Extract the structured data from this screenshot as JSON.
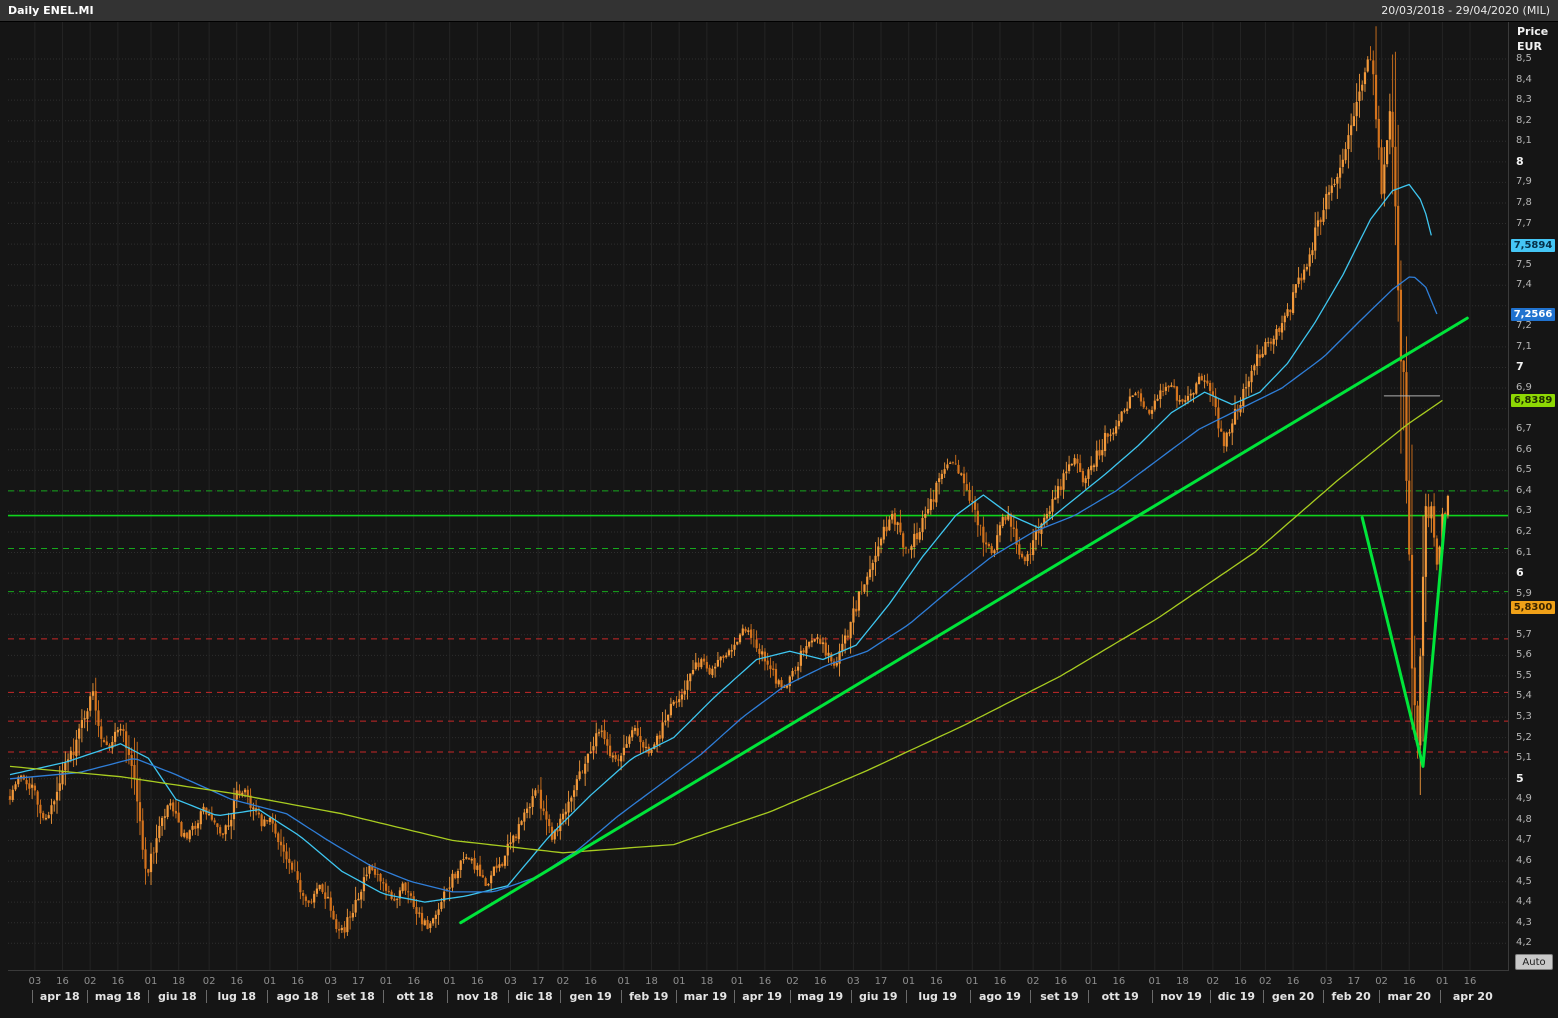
{
  "window": {
    "title": "Daily ENEL.MI",
    "date_range": "20/03/2018 - 29/04/2020 (MIL)"
  },
  "price_axis": {
    "title_line1": "Price",
    "title_line2": "EUR",
    "min": 4.2,
    "max": 8.5,
    "step": 0.1,
    "decimal_separator": ","
  },
  "auto_button": {
    "label": "Auto"
  },
  "markers": [
    {
      "value": 7.5894,
      "label": "7,5894",
      "bg": "#45c6f5",
      "fg": "#053047"
    },
    {
      "value": 7.2566,
      "label": "7,2566",
      "bg": "#2072cf",
      "fg": "#ffffff"
    },
    {
      "value": 6.8389,
      "label": "6,8389",
      "bg": "#8ed804",
      "fg": "#1c2a00"
    },
    {
      "value": 5.83,
      "label": "5,8300",
      "bg": "#f0a118",
      "fg": "#3a2400"
    }
  ],
  "x_axis": {
    "total_days": 541,
    "months": [
      {
        "label": "apr 18",
        "start": 8,
        "t1": "03",
        "t2": "16"
      },
      {
        "label": "mag 18",
        "start": 28,
        "t1": "02",
        "t2": "16"
      },
      {
        "label": "giu 18",
        "start": 50,
        "t1": "01",
        "t2": "18"
      },
      {
        "label": "lug 18",
        "start": 71,
        "t1": "02",
        "t2": "16"
      },
      {
        "label": "ago 18",
        "start": 93,
        "t1": "01",
        "t2": "16"
      },
      {
        "label": "set 18",
        "start": 115,
        "t1": "03",
        "t2": "17"
      },
      {
        "label": "ott 18",
        "start": 135,
        "t1": "01",
        "t2": "16"
      },
      {
        "label": "nov 18",
        "start": 158,
        "t1": "01",
        "t2": "16"
      },
      {
        "label": "dic 18",
        "start": 180,
        "t1": "03",
        "t2": "17"
      },
      {
        "label": "gen 19",
        "start": 199,
        "t1": "02",
        "t2": "16"
      },
      {
        "label": "feb 19",
        "start": 221,
        "t1": "01",
        "t2": "18"
      },
      {
        "label": "mar 19",
        "start": 241,
        "t1": "01",
        "t2": "18"
      },
      {
        "label": "apr 19",
        "start": 262,
        "t1": "01",
        "t2": "16"
      },
      {
        "label": "mag 19",
        "start": 282,
        "t1": "02",
        "t2": "16"
      },
      {
        "label": "giu 19",
        "start": 304,
        "t1": "03",
        "t2": "17"
      },
      {
        "label": "lug 19",
        "start": 324,
        "t1": "01",
        "t2": "16"
      },
      {
        "label": "ago 19",
        "start": 347,
        "t1": "01",
        "t2": "16"
      },
      {
        "label": "set 19",
        "start": 369,
        "t1": "02",
        "t2": "16"
      },
      {
        "label": "ott 19",
        "start": 390,
        "t1": "01",
        "t2": "16"
      },
      {
        "label": "nov 19",
        "start": 413,
        "t1": "01",
        "t2": "18"
      },
      {
        "label": "dic 19",
        "start": 434,
        "t1": "02",
        "t2": "16"
      },
      {
        "label": "gen 20",
        "start": 453,
        "t1": "02",
        "t2": "16"
      },
      {
        "label": "feb 20",
        "start": 475,
        "t1": "03",
        "t2": "17"
      },
      {
        "label": "mar 20",
        "start": 495,
        "t1": "02",
        "t2": "16"
      },
      {
        "label": "apr 20",
        "start": 517,
        "t1": "01",
        "t2": "16"
      }
    ]
  },
  "chart_data": {
    "type": "candlestick",
    "title": "Daily ENEL.MI",
    "symbol": "ENEL.MI",
    "timeframe": "Daily",
    "xrange": "20/03/2018 - 29/04/2020",
    "ylabel": "Price EUR",
    "ylim": [
      4.07,
      8.68
    ],
    "grid": {
      "h_step": 0.1
    },
    "candle_color_up": "#f2993b",
    "candle_color_down": "#d4731d",
    "last_day": 520,
    "close_anchors": [
      [
        0,
        4.92
      ],
      [
        4,
        5.02
      ],
      [
        8,
        4.96
      ],
      [
        12,
        4.8
      ],
      [
        16,
        4.88
      ],
      [
        20,
        5.06
      ],
      [
        24,
        5.18
      ],
      [
        27,
        5.32
      ],
      [
        30,
        5.42
      ],
      [
        33,
        5.22
      ],
      [
        36,
        5.16
      ],
      [
        40,
        5.26
      ],
      [
        44,
        5.08
      ],
      [
        46,
        4.9
      ],
      [
        48,
        4.64
      ],
      [
        50,
        4.55
      ],
      [
        53,
        4.72
      ],
      [
        56,
        4.82
      ],
      [
        58,
        4.88
      ],
      [
        61,
        4.76
      ],
      [
        64,
        4.7
      ],
      [
        67,
        4.78
      ],
      [
        70,
        4.85
      ],
      [
        73,
        4.8
      ],
      [
        76,
        4.72
      ],
      [
        79,
        4.78
      ],
      [
        82,
        4.92
      ],
      [
        85,
        4.95
      ],
      [
        88,
        4.85
      ],
      [
        91,
        4.78
      ],
      [
        94,
        4.8
      ],
      [
        97,
        4.72
      ],
      [
        100,
        4.6
      ],
      [
        103,
        4.52
      ],
      [
        106,
        4.44
      ],
      [
        109,
        4.4
      ],
      [
        112,
        4.48
      ],
      [
        115,
        4.42
      ],
      [
        118,
        4.3
      ],
      [
        121,
        4.26
      ],
      [
        124,
        4.38
      ],
      [
        127,
        4.48
      ],
      [
        130,
        4.56
      ],
      [
        133,
        4.52
      ],
      [
        136,
        4.44
      ],
      [
        139,
        4.4
      ],
      [
        142,
        4.5
      ],
      [
        145,
        4.42
      ],
      [
        148,
        4.34
      ],
      [
        151,
        4.27
      ],
      [
        154,
        4.32
      ],
      [
        157,
        4.42
      ],
      [
        160,
        4.52
      ],
      [
        163,
        4.58
      ],
      [
        166,
        4.62
      ],
      [
        169,
        4.55
      ],
      [
        172,
        4.48
      ],
      [
        175,
        4.55
      ],
      [
        178,
        4.6
      ],
      [
        181,
        4.68
      ],
      [
        184,
        4.76
      ],
      [
        187,
        4.85
      ],
      [
        190,
        4.95
      ],
      [
        193,
        4.86
      ],
      [
        196,
        4.72
      ],
      [
        199,
        4.8
      ],
      [
        202,
        4.9
      ],
      [
        205,
        5.0
      ],
      [
        208,
        5.08
      ],
      [
        211,
        5.18
      ],
      [
        214,
        5.25
      ],
      [
        217,
        5.12
      ],
      [
        220,
        5.08
      ],
      [
        223,
        5.18
      ],
      [
        226,
        5.26
      ],
      [
        229,
        5.15
      ],
      [
        232,
        5.12
      ],
      [
        235,
        5.22
      ],
      [
        238,
        5.32
      ],
      [
        241,
        5.38
      ],
      [
        244,
        5.45
      ],
      [
        247,
        5.52
      ],
      [
        250,
        5.58
      ],
      [
        253,
        5.52
      ],
      [
        256,
        5.58
      ],
      [
        259,
        5.62
      ],
      [
        262,
        5.66
      ],
      [
        265,
        5.72
      ],
      [
        268,
        5.7
      ],
      [
        271,
        5.62
      ],
      [
        274,
        5.55
      ],
      [
        277,
        5.48
      ],
      [
        280,
        5.44
      ],
      [
        283,
        5.52
      ],
      [
        286,
        5.6
      ],
      [
        289,
        5.66
      ],
      [
        292,
        5.7
      ],
      [
        295,
        5.62
      ],
      [
        298,
        5.55
      ],
      [
        301,
        5.64
      ],
      [
        304,
        5.76
      ],
      [
        307,
        5.88
      ],
      [
        310,
        5.98
      ],
      [
        313,
        6.1
      ],
      [
        316,
        6.2
      ],
      [
        319,
        6.28
      ],
      [
        322,
        6.18
      ],
      [
        325,
        6.1
      ],
      [
        328,
        6.2
      ],
      [
        331,
        6.3
      ],
      [
        334,
        6.38
      ],
      [
        337,
        6.48
      ],
      [
        340,
        6.55
      ],
      [
        343,
        6.5
      ],
      [
        346,
        6.42
      ],
      [
        349,
        6.3
      ],
      [
        352,
        6.18
      ],
      [
        355,
        6.1
      ],
      [
        358,
        6.22
      ],
      [
        361,
        6.3
      ],
      [
        364,
        6.12
      ],
      [
        367,
        6.05
      ],
      [
        370,
        6.15
      ],
      [
        373,
        6.25
      ],
      [
        376,
        6.32
      ],
      [
        379,
        6.4
      ],
      [
        382,
        6.5
      ],
      [
        385,
        6.55
      ],
      [
        388,
        6.45
      ],
      [
        391,
        6.52
      ],
      [
        394,
        6.6
      ],
      [
        397,
        6.68
      ],
      [
        400,
        6.72
      ],
      [
        403,
        6.8
      ],
      [
        406,
        6.88
      ],
      [
        409,
        6.85
      ],
      [
        412,
        6.78
      ],
      [
        415,
        6.85
      ],
      [
        418,
        6.92
      ],
      [
        421,
        6.88
      ],
      [
        424,
        6.82
      ],
      [
        427,
        6.88
      ],
      [
        430,
        6.95
      ],
      [
        433,
        6.9
      ],
      [
        436,
        6.8
      ],
      [
        439,
        6.64
      ],
      [
        442,
        6.72
      ],
      [
        445,
        6.85
      ],
      [
        448,
        6.95
      ],
      [
        451,
        7.05
      ],
      [
        454,
        7.1
      ],
      [
        457,
        7.16
      ],
      [
        460,
        7.22
      ],
      [
        463,
        7.3
      ],
      [
        466,
        7.42
      ],
      [
        469,
        7.52
      ],
      [
        472,
        7.65
      ],
      [
        475,
        7.78
      ],
      [
        478,
        7.88
      ],
      [
        481,
        8.0
      ],
      [
        484,
        8.12
      ],
      [
        487,
        8.3
      ],
      [
        490,
        8.45
      ],
      [
        492,
        8.52
      ],
      [
        494,
        8.3
      ],
      [
        495,
        8.05
      ],
      [
        496,
        7.85
      ],
      [
        497,
        8.0
      ],
      [
        499,
        8.25
      ],
      [
        501,
        7.7
      ],
      [
        503,
        7.1
      ],
      [
        505,
        6.45
      ],
      [
        507,
        5.75
      ],
      [
        508,
        5.3
      ],
      [
        509,
        5.12
      ],
      [
        510,
        5.5
      ],
      [
        511,
        5.95
      ],
      [
        512,
        6.25
      ],
      [
        514,
        6.35
      ],
      [
        516,
        6.05
      ],
      [
        518,
        6.25
      ],
      [
        520,
        6.35
      ]
    ],
    "overlays": [
      {
        "name": "ma-fast",
        "color": "#3ec6f0",
        "width": 1.3,
        "end": 515,
        "anchors": [
          [
            0,
            5.02
          ],
          [
            20,
            5.08
          ],
          [
            40,
            5.17
          ],
          [
            50,
            5.1
          ],
          [
            60,
            4.9
          ],
          [
            75,
            4.82
          ],
          [
            90,
            4.85
          ],
          [
            105,
            4.72
          ],
          [
            120,
            4.55
          ],
          [
            135,
            4.44
          ],
          [
            150,
            4.4
          ],
          [
            165,
            4.43
          ],
          [
            180,
            4.48
          ],
          [
            195,
            4.72
          ],
          [
            210,
            4.92
          ],
          [
            225,
            5.1
          ],
          [
            240,
            5.2
          ],
          [
            255,
            5.4
          ],
          [
            270,
            5.58
          ],
          [
            282,
            5.62
          ],
          [
            294,
            5.58
          ],
          [
            306,
            5.65
          ],
          [
            318,
            5.85
          ],
          [
            330,
            6.08
          ],
          [
            342,
            6.28
          ],
          [
            352,
            6.38
          ],
          [
            362,
            6.28
          ],
          [
            372,
            6.22
          ],
          [
            384,
            6.35
          ],
          [
            396,
            6.48
          ],
          [
            408,
            6.62
          ],
          [
            420,
            6.78
          ],
          [
            432,
            6.88
          ],
          [
            442,
            6.82
          ],
          [
            452,
            6.88
          ],
          [
            462,
            7.02
          ],
          [
            472,
            7.22
          ],
          [
            482,
            7.45
          ],
          [
            492,
            7.72
          ],
          [
            500,
            7.86
          ],
          [
            506,
            7.89
          ],
          [
            511,
            7.8
          ],
          [
            515,
            7.59
          ]
        ]
      },
      {
        "name": "ma-mid",
        "color": "#2f7ed8",
        "width": 1.3,
        "end": 516,
        "anchors": [
          [
            0,
            5.0
          ],
          [
            25,
            5.03
          ],
          [
            45,
            5.1
          ],
          [
            60,
            5.02
          ],
          [
            80,
            4.9
          ],
          [
            100,
            4.83
          ],
          [
            115,
            4.7
          ],
          [
            130,
            4.58
          ],
          [
            145,
            4.5
          ],
          [
            160,
            4.45
          ],
          [
            175,
            4.45
          ],
          [
            190,
            4.52
          ],
          [
            205,
            4.65
          ],
          [
            220,
            4.82
          ],
          [
            235,
            4.97
          ],
          [
            250,
            5.12
          ],
          [
            265,
            5.3
          ],
          [
            280,
            5.45
          ],
          [
            295,
            5.55
          ],
          [
            310,
            5.62
          ],
          [
            325,
            5.75
          ],
          [
            340,
            5.92
          ],
          [
            355,
            6.08
          ],
          [
            370,
            6.2
          ],
          [
            385,
            6.28
          ],
          [
            400,
            6.4
          ],
          [
            415,
            6.55
          ],
          [
            430,
            6.7
          ],
          [
            445,
            6.8
          ],
          [
            460,
            6.9
          ],
          [
            475,
            7.05
          ],
          [
            490,
            7.25
          ],
          [
            500,
            7.38
          ],
          [
            507,
            7.45
          ],
          [
            512,
            7.39
          ],
          [
            516,
            7.26
          ]
        ]
      },
      {
        "name": "ma-slow",
        "color": "#a8cc20",
        "width": 1.3,
        "end": 518,
        "anchors": [
          [
            0,
            5.06
          ],
          [
            40,
            5.01
          ],
          [
            80,
            4.93
          ],
          [
            120,
            4.83
          ],
          [
            160,
            4.7
          ],
          [
            200,
            4.64
          ],
          [
            240,
            4.68
          ],
          [
            275,
            4.84
          ],
          [
            310,
            5.04
          ],
          [
            345,
            5.26
          ],
          [
            380,
            5.5
          ],
          [
            415,
            5.78
          ],
          [
            450,
            6.1
          ],
          [
            480,
            6.45
          ],
          [
            505,
            6.72
          ],
          [
            518,
            6.84
          ]
        ]
      }
    ],
    "levels": [
      {
        "price": 6.4,
        "color": "#16a81c",
        "style": "dashed"
      },
      {
        "price": 6.28,
        "color": "#0fd41c",
        "style": "solid"
      },
      {
        "price": 6.12,
        "color": "#16a81c",
        "style": "dashed"
      },
      {
        "price": 5.91,
        "color": "#16a81c",
        "style": "dashed"
      },
      {
        "price": 5.68,
        "color": "#c62828",
        "style": "dashed"
      },
      {
        "price": 5.42,
        "color": "#c62828",
        "style": "dashed"
      },
      {
        "price": 5.28,
        "color": "#c62828",
        "style": "dashed"
      },
      {
        "price": 5.13,
        "color": "#c62828",
        "style": "dashed"
      }
    ],
    "drawings": [
      {
        "name": "uptrend-line",
        "color": "#00e53a",
        "width": 3,
        "points": [
          [
            163,
            4.3
          ],
          [
            527,
            7.24
          ]
        ]
      },
      {
        "name": "v-shape-line",
        "color": "#00e53a",
        "width": 3,
        "points": [
          [
            489,
            6.27
          ],
          [
            511,
            5.06
          ],
          [
            519,
            6.28
          ]
        ]
      },
      {
        "name": "last-value-line",
        "color": "#b0b0b0",
        "width": 1,
        "points": [
          [
            497,
            6.862
          ],
          [
            517,
            6.862
          ]
        ]
      }
    ]
  }
}
